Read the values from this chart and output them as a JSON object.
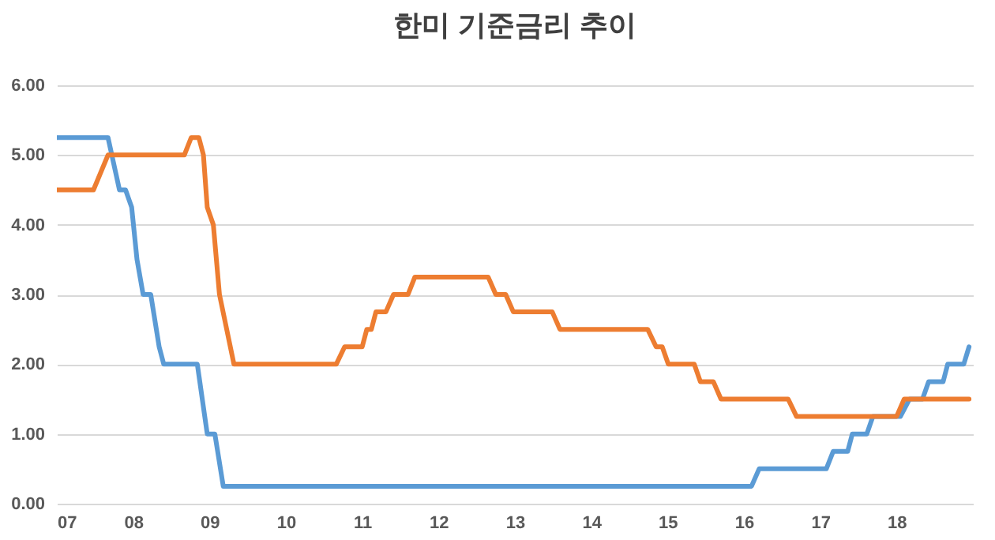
{
  "chart_data": {
    "type": "line",
    "title": "한미 기준금리 추이",
    "series": [
      {
        "color": "#5b9bd5",
        "x": [
          2007.0,
          2007.67,
          2007.77,
          2007.82,
          2007.9,
          2007.98,
          2008.05,
          2008.13,
          2008.23,
          2008.34,
          2008.4,
          2008.84,
          2008.97,
          2009.07,
          2009.18,
          2016.1,
          2016.2,
          2017.08,
          2017.17,
          2017.36,
          2017.42,
          2017.61,
          2017.69,
          2018.05,
          2018.17,
          2018.34,
          2018.42,
          2018.61,
          2018.67,
          2018.88,
          2018.95
        ],
        "values": [
          5.25,
          5.25,
          4.75,
          4.5,
          4.5,
          4.25,
          3.5,
          3.0,
          3.0,
          2.25,
          2.0,
          2.0,
          1.0,
          1.0,
          0.25,
          0.25,
          0.5,
          0.5,
          0.75,
          0.75,
          1.0,
          1.0,
          1.25,
          1.25,
          1.5,
          1.5,
          1.75,
          1.75,
          2.0,
          2.0,
          2.25
        ]
      },
      {
        "color": "#ed7d31",
        "x": [
          2007.0,
          2007.48,
          2007.67,
          2008.67,
          2008.76,
          2008.86,
          2008.92,
          2008.97,
          2009.05,
          2009.13,
          2009.32,
          2010.66,
          2010.77,
          2011.0,
          2011.06,
          2011.12,
          2011.18,
          2011.31,
          2011.41,
          2011.6,
          2011.69,
          2012.65,
          2012.75,
          2012.88,
          2012.98,
          2013.49,
          2013.59,
          2014.74,
          2014.85,
          2014.93,
          2015.01,
          2015.35,
          2015.43,
          2015.6,
          2015.7,
          2016.58,
          2016.69,
          2018.0,
          2018.1,
          2018.95
        ],
        "values": [
          4.5,
          4.5,
          5.0,
          5.0,
          5.25,
          5.25,
          5.0,
          4.25,
          4.0,
          3.0,
          2.0,
          2.0,
          2.25,
          2.25,
          2.5,
          2.5,
          2.75,
          2.75,
          3.0,
          3.0,
          3.25,
          3.25,
          3.0,
          3.0,
          2.75,
          2.75,
          2.5,
          2.5,
          2.25,
          2.25,
          2.0,
          2.0,
          1.75,
          1.75,
          1.5,
          1.5,
          1.25,
          1.25,
          1.5,
          1.5
        ]
      }
    ],
    "xlim": [
      2007,
      2019
    ],
    "xticks": [
      {
        "value": 2007,
        "label": "07"
      },
      {
        "value": 2008,
        "label": "08"
      },
      {
        "value": 2009,
        "label": "09"
      },
      {
        "value": 2010,
        "label": "10"
      },
      {
        "value": 2011,
        "label": "11"
      },
      {
        "value": 2012,
        "label": "12"
      },
      {
        "value": 2013,
        "label": "13"
      },
      {
        "value": 2014,
        "label": "14"
      },
      {
        "value": 2015,
        "label": "15"
      },
      {
        "value": 2016,
        "label": "16"
      },
      {
        "value": 2017,
        "label": "17"
      },
      {
        "value": 2018,
        "label": "18"
      }
    ],
    "ylim": [
      0,
      6
    ],
    "yticks": [
      {
        "value": 0,
        "label": "0.00"
      },
      {
        "value": 1,
        "label": "1.00"
      },
      {
        "value": 2,
        "label": "2.00"
      },
      {
        "value": 3,
        "label": "3.00"
      },
      {
        "value": 4,
        "label": "4.00"
      },
      {
        "value": 5,
        "label": "5.00"
      },
      {
        "value": 6,
        "label": "6.00"
      }
    ],
    "grid": "y",
    "legend": false,
    "marker": "none",
    "line_style": "solid"
  }
}
